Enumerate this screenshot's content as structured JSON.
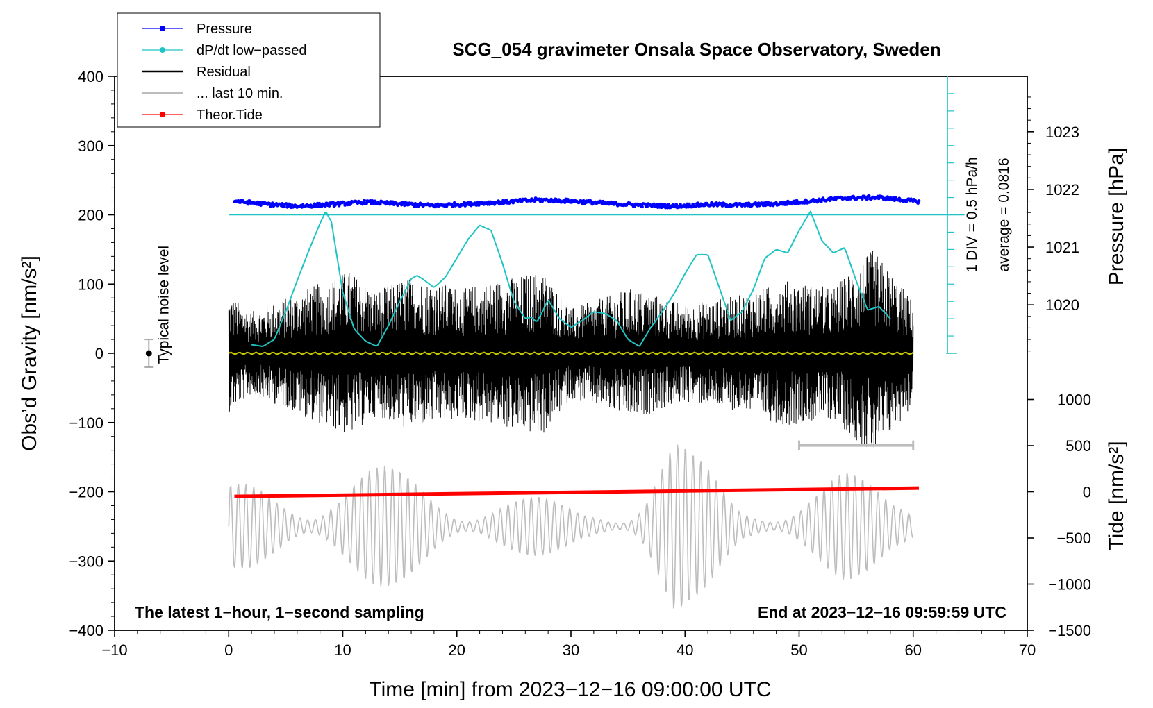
{
  "chart_data": {
    "type": "line",
    "title": "SCG_054 gravimeter Onsala Space Observatory, Sweden",
    "xlabel": "Time [min] from 2023−12−16 09:00:00 UTC",
    "ylabel": "Obs’d Gravity [nm/s²]",
    "ylabel_right_pressure": "Pressure [hPa]",
    "ylabel_right_tide": "Tide [nm/s²]",
    "xlim": [
      -10,
      70
    ],
    "ylim": [
      -400,
      400
    ],
    "pressure_range": [
      1019.0,
      1024.0
    ],
    "tide_range": [
      -1500,
      1500
    ],
    "x_ticks": [
      -10,
      0,
      10,
      20,
      30,
      40,
      50,
      60,
      70
    ],
    "x_tick_labels": [
      "−10",
      "0",
      "10",
      "20",
      "30",
      "40",
      "50",
      "60",
      "70"
    ],
    "y_ticks": [
      -400,
      -300,
      -200,
      -100,
      0,
      100,
      200,
      300,
      400
    ],
    "y_tick_labels": [
      "−400",
      "−300",
      "−200",
      "−100",
      "0",
      "100",
      "200",
      "300",
      "400"
    ],
    "pressure_ticks": [
      1020,
      1021,
      1022,
      1023
    ],
    "pressure_tick_labels": [
      "1020",
      "1021",
      "1022",
      "1023"
    ],
    "tide_ticks": [
      -1500,
      -1000,
      -500,
      0,
      500,
      1000
    ],
    "tide_tick_labels": [
      "−1500",
      "−1000",
      "−500",
      "0",
      "500",
      "1000"
    ],
    "legend": {
      "placement": "top-left",
      "entries": [
        {
          "label": "Pressure",
          "color": "#0000ff",
          "marker": true
        },
        {
          "label": "dP/dt low−passed",
          "color": "#1fc4c4",
          "marker": true
        },
        {
          "label": "Residual",
          "color": "#000000",
          "marker": false
        },
        {
          "label": "... last 10 min.",
          "color": "#bdbdbd",
          "marker": false
        },
        {
          "label": "Theor.Tide",
          "color": "#ff0000",
          "marker": true
        }
      ]
    },
    "series": [
      {
        "name": "Pressure",
        "axis": "pressure",
        "color": "#0000ff",
        "x": [
          0.5,
          3,
          6,
          9,
          12,
          15,
          18,
          21,
          24,
          27,
          30,
          33,
          36,
          39,
          42,
          45,
          48,
          51,
          54,
          57,
          60.5
        ],
        "values": [
          1021.8,
          1021.75,
          1021.71,
          1021.74,
          1021.78,
          1021.75,
          1021.72,
          1021.75,
          1021.78,
          1021.82,
          1021.8,
          1021.76,
          1021.73,
          1021.71,
          1021.74,
          1021.73,
          1021.75,
          1021.8,
          1021.85,
          1021.86,
          1021.79
        ]
      },
      {
        "name": "dP/dt low−passed",
        "axis": "dpdt",
        "color": "#1fc4c4",
        "divisions_per_hPa_per_h": 0.5,
        "x": [
          2,
          3,
          4,
          5,
          6,
          7,
          8,
          8.5,
          9,
          10,
          11,
          12,
          13,
          14,
          15,
          16,
          16.5,
          17,
          18,
          19,
          20,
          21,
          22,
          23,
          24,
          25,
          26,
          26.5,
          27,
          27.5,
          28,
          29,
          30,
          31,
          32,
          33,
          34,
          35,
          36,
          37,
          38,
          39,
          40,
          41,
          42,
          43,
          44,
          45,
          46,
          47,
          48,
          49,
          50,
          51,
          52,
          53,
          54,
          55,
          56,
          57,
          58
        ],
        "values": [
          0.5,
          0.4,
          0.8,
          2.4,
          4.2,
          5.9,
          7.5,
          8.2,
          7.6,
          3.5,
          1.4,
          0.7,
          0.4,
          1.6,
          3.0,
          4.3,
          4.5,
          4.3,
          3.8,
          4.4,
          5.5,
          6.6,
          7.4,
          7.1,
          5.2,
          3.0,
          2.0,
          2.1,
          1.8,
          2.4,
          3.1,
          2.0,
          1.5,
          1.9,
          2.4,
          2.3,
          1.9,
          0.8,
          0.4,
          1.5,
          2.4,
          3.4,
          4.6,
          5.7,
          5.7,
          3.8,
          1.9,
          2.4,
          3.7,
          5.5,
          6.0,
          5.8,
          7.1,
          8.2,
          6.5,
          5.8,
          6.1,
          4.2,
          2.5,
          2.7,
          2.0
        ]
      },
      {
        "name": "Residual",
        "axis": "gravity",
        "color": "#000000",
        "x_range": [
          0,
          60
        ],
        "approx_envelope": [
          {
            "x": 0,
            "amp": 85
          },
          {
            "x": 2,
            "amp": 60
          },
          {
            "x": 5,
            "amp": 80
          },
          {
            "x": 10.5,
            "amp": 120
          },
          {
            "x": 13,
            "amp": 90
          },
          {
            "x": 15.5,
            "amp": 110
          },
          {
            "x": 20.5,
            "amp": 95
          },
          {
            "x": 27.5,
            "amp": 120
          },
          {
            "x": 30,
            "amp": 65
          },
          {
            "x": 35.5,
            "amp": 95
          },
          {
            "x": 40,
            "amp": 70
          },
          {
            "x": 45,
            "amp": 85
          },
          {
            "x": 49,
            "amp": 105
          },
          {
            "x": 53,
            "amp": 95
          },
          {
            "x": 56.5,
            "amp": 150
          },
          {
            "x": 60,
            "amp": 75
          }
        ]
      },
      {
        "name": "Residual low-passed",
        "axis": "gravity",
        "color": "#c8c800",
        "x": [
          0,
          60
        ],
        "values": [
          0,
          0
        ]
      },
      {
        "name": "... last 10 min.",
        "axis": "gravity",
        "color": "#bdbdbd",
        "x_range": [
          0,
          60
        ],
        "offset": -250,
        "approx_envelope": [
          {
            "x": 0,
            "amp": 60
          },
          {
            "x": 6,
            "amp": 75
          },
          {
            "x": 8.5,
            "amp": 110
          },
          {
            "x": 13,
            "amp": 90
          },
          {
            "x": 20,
            "amp": 70
          },
          {
            "x": 25,
            "amp": 50
          },
          {
            "x": 31,
            "amp": 30
          },
          {
            "x": 35,
            "amp": 50
          },
          {
            "x": 37.5,
            "amp": 130
          },
          {
            "x": 39,
            "amp": 150
          },
          {
            "x": 40.5,
            "amp": 110
          },
          {
            "x": 45,
            "amp": 40
          },
          {
            "x": 50,
            "amp": 70
          },
          {
            "x": 54,
            "amp": 80
          },
          {
            "x": 58,
            "amp": 60
          },
          {
            "x": 60,
            "amp": 80
          }
        ]
      },
      {
        "name": "Theor.Tide",
        "axis": "tide",
        "color": "#ff0000",
        "x": [
          0.5,
          60.5
        ],
        "values": [
          -50,
          40
        ]
      }
    ],
    "noise_level": {
      "x": -7,
      "center": 0,
      "half_range": 20,
      "label": "Typical noise level"
    },
    "last10_marker": {
      "x": [
        50,
        60
      ],
      "y": -133
    },
    "pressure_scale": {
      "line1": "1 DIV = 0.5 hPa/h",
      "line2": "average = 0.0816",
      "zero_gravity_value": 200,
      "top_gravity_value": 400,
      "zero_pressure_line_y": 200
    },
    "annotations": {
      "bottom_left": "The latest 1−hour, 1−second sampling",
      "bottom_right": "End at 2023−12−16 09:59:59 UTC"
    },
    "grid": false
  }
}
